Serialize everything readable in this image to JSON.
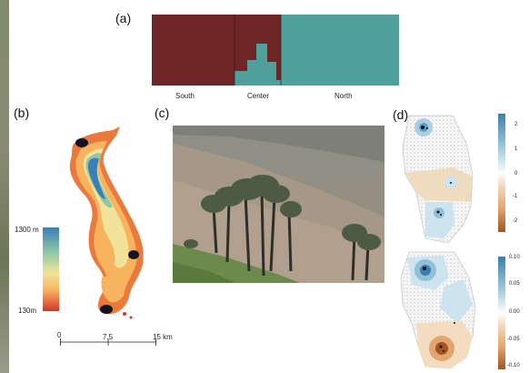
{
  "panels": {
    "a": {
      "label": "(a)",
      "groups": [
        "South",
        "Center",
        "North"
      ],
      "colors": {
        "cluster1": "#6e2525",
        "cluster2": "#4f9f9c"
      }
    },
    "b": {
      "label": "(b)",
      "legend": {
        "max": "1300 m",
        "min": "130m"
      },
      "scale": {
        "t0": "0",
        "t1": "7.5",
        "t2": "15 km"
      },
      "colors": {
        "high": "#3a7fb5",
        "mid": "#f1e79a",
        "low": "#d7352c"
      }
    },
    "c": {
      "label": "(c)"
    },
    "d": {
      "label": "(d)",
      "top_legend_ticks": [
        "2",
        "1",
        "0",
        "-1",
        "-2"
      ],
      "bottom_legend_ticks": [
        "0.10",
        "0.05",
        "0.00",
        "-0.05",
        "-0.10"
      ]
    }
  }
}
